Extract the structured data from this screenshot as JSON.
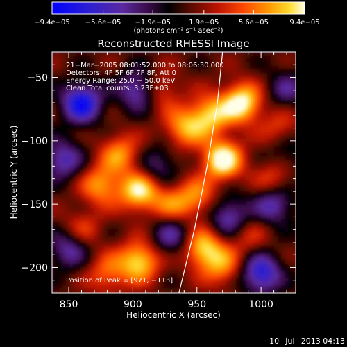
{
  "chart_data": {
    "type": "heatmap",
    "title": "Reconstructed RHESSI Image",
    "xlabel": "Heliocentric X (arcsec)",
    "ylabel": "Heliocentric Y (arcsec)",
    "xlim": [
      837,
      1027
    ],
    "ylim": [
      -220,
      -30
    ],
    "x_ticks": [
      850,
      900,
      950,
      1000
    ],
    "y_ticks": [
      -50,
      -100,
      -150,
      -200
    ],
    "x_tick_labels": [
      "850",
      "900",
      "950",
      "1000"
    ],
    "y_tick_labels": [
      "−50",
      "−100",
      "−150",
      "−200"
    ],
    "colorbar": {
      "ticks": [
        -9.4e-05,
        -5.6e-05,
        -1.9e-05,
        1.9e-05,
        5.6e-05,
        9.4e-05
      ],
      "tick_labels": [
        "−9.4e−05",
        "−5.6e−05",
        "−1.9e−05",
        "1.9e−05",
        "5.6e−05",
        "9.4e−05"
      ],
      "range": [
        -9.4e-05,
        9.4e-05
      ],
      "units_label": "(photons cm⁻² s⁻¹ asec⁻²)"
    },
    "annotations": [
      "21−Mar−2005 08:01:52.000 to 08:06:30.000",
      "Detectors: 4F 5F 6F 7F 8F, Att 0",
      "Energy Range: 25.0 − 50.0 keV",
      "Clean    Total counts: 3.23E+03"
    ],
    "peak_label": "Position of Peak = [971, −113]",
    "limb_curve": [
      [
        936,
        -220
      ],
      [
        948,
        -170
      ],
      [
        958,
        -120
      ],
      [
        966,
        -70
      ],
      [
        970,
        -30
      ]
    ],
    "hot_spots": [
      {
        "x": 985,
        "y": -70,
        "value": 9e-05
      },
      {
        "x": 970,
        "y": -115,
        "value": 9.4e-05
      },
      {
        "x": 960,
        "y": -80,
        "value": 7e-05
      },
      {
        "x": 940,
        "y": -90,
        "value": 6e-05
      },
      {
        "x": 905,
        "y": -140,
        "value": 8e-05
      },
      {
        "x": 890,
        "y": -110,
        "value": 5.5e-05
      },
      {
        "x": 875,
        "y": -135,
        "value": 6e-05
      },
      {
        "x": 950,
        "y": -145,
        "value": 5e-05
      },
      {
        "x": 930,
        "y": -150,
        "value": 4.5e-05
      },
      {
        "x": 905,
        "y": -195,
        "value": 8e-05
      },
      {
        "x": 880,
        "y": -205,
        "value": 4.5e-05
      },
      {
        "x": 955,
        "y": -185,
        "value": 7.5e-05
      },
      {
        "x": 970,
        "y": -200,
        "value": 5e-05
      },
      {
        "x": 1010,
        "y": -130,
        "value": 4e-05
      },
      {
        "x": 860,
        "y": -170,
        "value": 3.5e-05
      },
      {
        "x": 1015,
        "y": -90,
        "value": 3.5e-05
      },
      {
        "x": 920,
        "y": -60,
        "value": 4.5e-05
      },
      {
        "x": 990,
        "y": -175,
        "value": 3e-05
      }
    ],
    "cold_spots": [
      {
        "x": 860,
        "y": -70,
        "value": -9e-05
      },
      {
        "x": 905,
        "y": -60,
        "value": -7e-05
      },
      {
        "x": 845,
        "y": -115,
        "value": -6e-05
      },
      {
        "x": 1000,
        "y": -205,
        "value": -8e-05
      },
      {
        "x": 1010,
        "y": -150,
        "value": -6e-05
      },
      {
        "x": 975,
        "y": -160,
        "value": -6e-05
      },
      {
        "x": 930,
        "y": -175,
        "value": -5e-05
      },
      {
        "x": 850,
        "y": -185,
        "value": -5.5e-05
      },
      {
        "x": 1020,
        "y": -60,
        "value": -4e-05
      },
      {
        "x": 920,
        "y": -120,
        "value": -4e-05
      },
      {
        "x": 1020,
        "y": -110,
        "value": -3e-05
      }
    ]
  },
  "footer": {
    "timestamp": "10−Jul−2013 04:13"
  }
}
